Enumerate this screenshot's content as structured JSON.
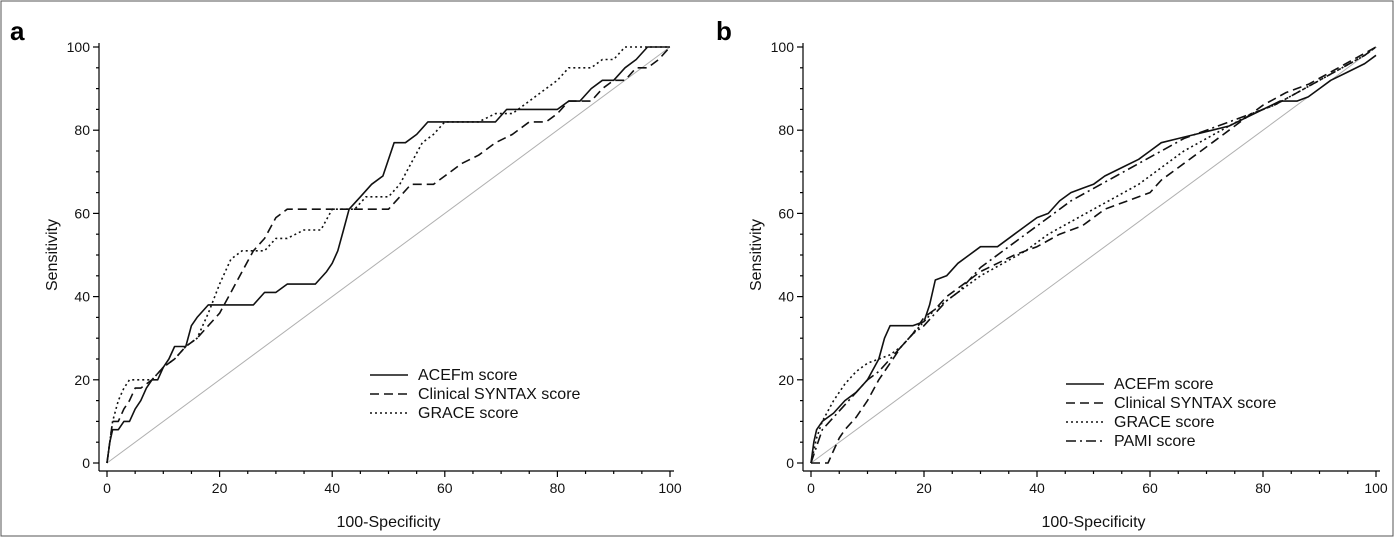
{
  "chart_data": [
    {
      "type": "line",
      "panel": "a",
      "xlabel": "100-Specificity",
      "ylabel": "Sensitivity",
      "xlim": [
        0,
        100
      ],
      "ylim": [
        0,
        100
      ],
      "xticks": [
        0,
        20,
        40,
        60,
        80,
        100
      ],
      "yticks": [
        0,
        20,
        40,
        60,
        80,
        100
      ],
      "legend_position": "bottom-right",
      "reference_line": "diagonal",
      "series": [
        {
          "name": "ACEFm score",
          "style": "solid",
          "x": [
            0,
            0.5,
            1,
            2,
            3,
            4,
            5,
            6,
            7,
            8,
            9,
            10,
            11,
            12,
            14,
            15,
            16,
            18,
            20,
            22,
            24,
            26,
            28,
            30,
            32,
            35,
            37,
            39,
            40,
            41,
            42,
            43,
            45,
            47,
            49,
            51,
            53,
            55,
            57,
            60,
            63,
            66,
            69,
            71,
            74,
            77,
            80,
            82,
            84,
            86,
            88,
            90,
            92,
            94,
            96,
            100
          ],
          "y": [
            0,
            5,
            8,
            8,
            10,
            10,
            13,
            15,
            18,
            20,
            20,
            23,
            25,
            28,
            28,
            33,
            35,
            38,
            38,
            38,
            38,
            38,
            41,
            41,
            43,
            43,
            43,
            46,
            48,
            51,
            56,
            61,
            64,
            67,
            69,
            77,
            77,
            79,
            82,
            82,
            82,
            82,
            82,
            85,
            85,
            85,
            85,
            87,
            87,
            90,
            92,
            92,
            95,
            97,
            100,
            100
          ]
        },
        {
          "name": "Clinical SYNTAX score",
          "style": "dashed",
          "x": [
            0,
            0.5,
            1,
            2,
            3,
            4,
            5,
            6,
            8,
            10,
            12,
            14,
            16,
            18,
            20,
            22,
            24,
            26,
            28,
            30,
            32,
            35,
            40,
            45,
            50,
            52,
            54,
            56,
            58,
            60,
            63,
            66,
            69,
            72,
            75,
            78,
            80,
            82,
            84,
            86,
            88,
            90,
            92,
            94,
            96,
            98,
            100
          ],
          "y": [
            0,
            5,
            10,
            10,
            13,
            15,
            18,
            18,
            20,
            23,
            25,
            28,
            30,
            33,
            36,
            41,
            46,
            51,
            54,
            59,
            61,
            61,
            61,
            61,
            61,
            64,
            67,
            67,
            67,
            69,
            72,
            74,
            77,
            79,
            82,
            82,
            84,
            87,
            87,
            87,
            90,
            92,
            92,
            95,
            95,
            97,
            100
          ]
        },
        {
          "name": "GRACE score",
          "style": "dotted",
          "x": [
            0,
            0.5,
            1,
            2,
            3,
            4,
            5,
            6,
            8,
            10,
            12,
            14,
            16,
            18,
            20,
            22,
            24,
            26,
            28,
            30,
            32,
            35,
            38,
            40,
            42,
            44,
            46,
            48,
            50,
            52,
            54,
            56,
            58,
            60,
            63,
            66,
            69,
            72,
            75,
            78,
            80,
            82,
            84,
            86,
            88,
            90,
            92,
            100
          ],
          "y": [
            0,
            5,
            10,
            15,
            18,
            20,
            20,
            20,
            20,
            23,
            25,
            28,
            30,
            36,
            43,
            49,
            51,
            51,
            51,
            54,
            54,
            56,
            56,
            61,
            61,
            61,
            64,
            64,
            64,
            67,
            72,
            77,
            79,
            82,
            82,
            82,
            84,
            84,
            87,
            90,
            92,
            95,
            95,
            95,
            97,
            97,
            100,
            100
          ]
        }
      ]
    },
    {
      "type": "line",
      "panel": "b",
      "xlabel": "100-Specificity",
      "ylabel": "Sensitivity",
      "xlim": [
        0,
        100
      ],
      "ylim": [
        0,
        100
      ],
      "xticks": [
        0,
        20,
        40,
        60,
        80,
        100
      ],
      "yticks": [
        0,
        20,
        40,
        60,
        80,
        100
      ],
      "legend_position": "bottom-right",
      "reference_line": "diagonal",
      "series": [
        {
          "name": "ACEFm score",
          "style": "solid",
          "x": [
            0,
            0.5,
            1,
            2,
            4,
            6,
            8,
            10,
            12,
            13,
            14,
            16,
            18,
            20,
            21,
            22,
            24,
            26,
            28,
            30,
            33,
            36,
            38,
            40,
            42,
            44,
            46,
            48,
            50,
            52,
            55,
            58,
            60,
            62,
            65,
            68,
            71,
            74,
            77,
            80,
            83,
            86,
            88,
            90,
            92,
            95,
            98,
            100
          ],
          "y": [
            0,
            5,
            8,
            10,
            12,
            15,
            17,
            20,
            25,
            30,
            33,
            33,
            33,
            34,
            38,
            44,
            45,
            48,
            50,
            52,
            52,
            55,
            57,
            59,
            60,
            63,
            65,
            66,
            67,
            69,
            71,
            73,
            75,
            77,
            78,
            79,
            80,
            81,
            83,
            85,
            87,
            87,
            88,
            90,
            92,
            94,
            96,
            98
          ]
        },
        {
          "name": "Clinical SYNTAX score",
          "style": "dashed",
          "x": [
            0,
            1,
            2,
            3,
            4,
            5,
            6,
            8,
            10,
            12,
            14,
            16,
            18,
            20,
            22,
            24,
            26,
            28,
            30,
            33,
            36,
            40,
            44,
            48,
            52,
            56,
            60,
            62,
            65,
            68,
            71,
            74,
            77,
            80,
            84,
            88,
            92,
            96,
            100
          ],
          "y": [
            0,
            0,
            0,
            0,
            3,
            6,
            8,
            11,
            15,
            20,
            24,
            28,
            31,
            35,
            37,
            40,
            42,
            44,
            46,
            48,
            50,
            52,
            55,
            57,
            61,
            63,
            65,
            68,
            71,
            74,
            77,
            80,
            83,
            86,
            89,
            91,
            94,
            97,
            100
          ]
        },
        {
          "name": "GRACE score",
          "style": "dotted",
          "x": [
            0,
            1,
            2,
            4,
            6,
            8,
            10,
            12,
            14,
            16,
            18,
            20,
            22,
            24,
            26,
            28,
            30,
            34,
            38,
            42,
            46,
            50,
            54,
            58,
            62,
            66,
            70,
            74,
            78,
            82,
            86,
            90,
            94,
            98,
            100
          ],
          "y": [
            0,
            6,
            10,
            15,
            19,
            22,
            24,
            25,
            26,
            28,
            31,
            34,
            37,
            39,
            41,
            43,
            45,
            48,
            51,
            55,
            58,
            61,
            64,
            67,
            71,
            75,
            78,
            81,
            84,
            86,
            89,
            92,
            95,
            98,
            100
          ]
        },
        {
          "name": "PAMI score",
          "style": "dashdot",
          "x": [
            0,
            1,
            2,
            4,
            6,
            8,
            10,
            12,
            14,
            16,
            18,
            20,
            22,
            24,
            26,
            28,
            30,
            34,
            38,
            42,
            46,
            50,
            54,
            58,
            62,
            66,
            70,
            74,
            78,
            82,
            86,
            90,
            94,
            98,
            100
          ],
          "y": [
            0,
            4,
            8,
            11,
            14,
            17,
            20,
            22,
            25,
            28,
            31,
            33,
            36,
            39,
            41,
            44,
            47,
            51,
            55,
            59,
            63,
            66,
            69,
            72,
            75,
            78,
            80,
            82,
            84,
            86,
            89,
            92,
            95,
            98,
            100
          ]
        }
      ]
    }
  ]
}
